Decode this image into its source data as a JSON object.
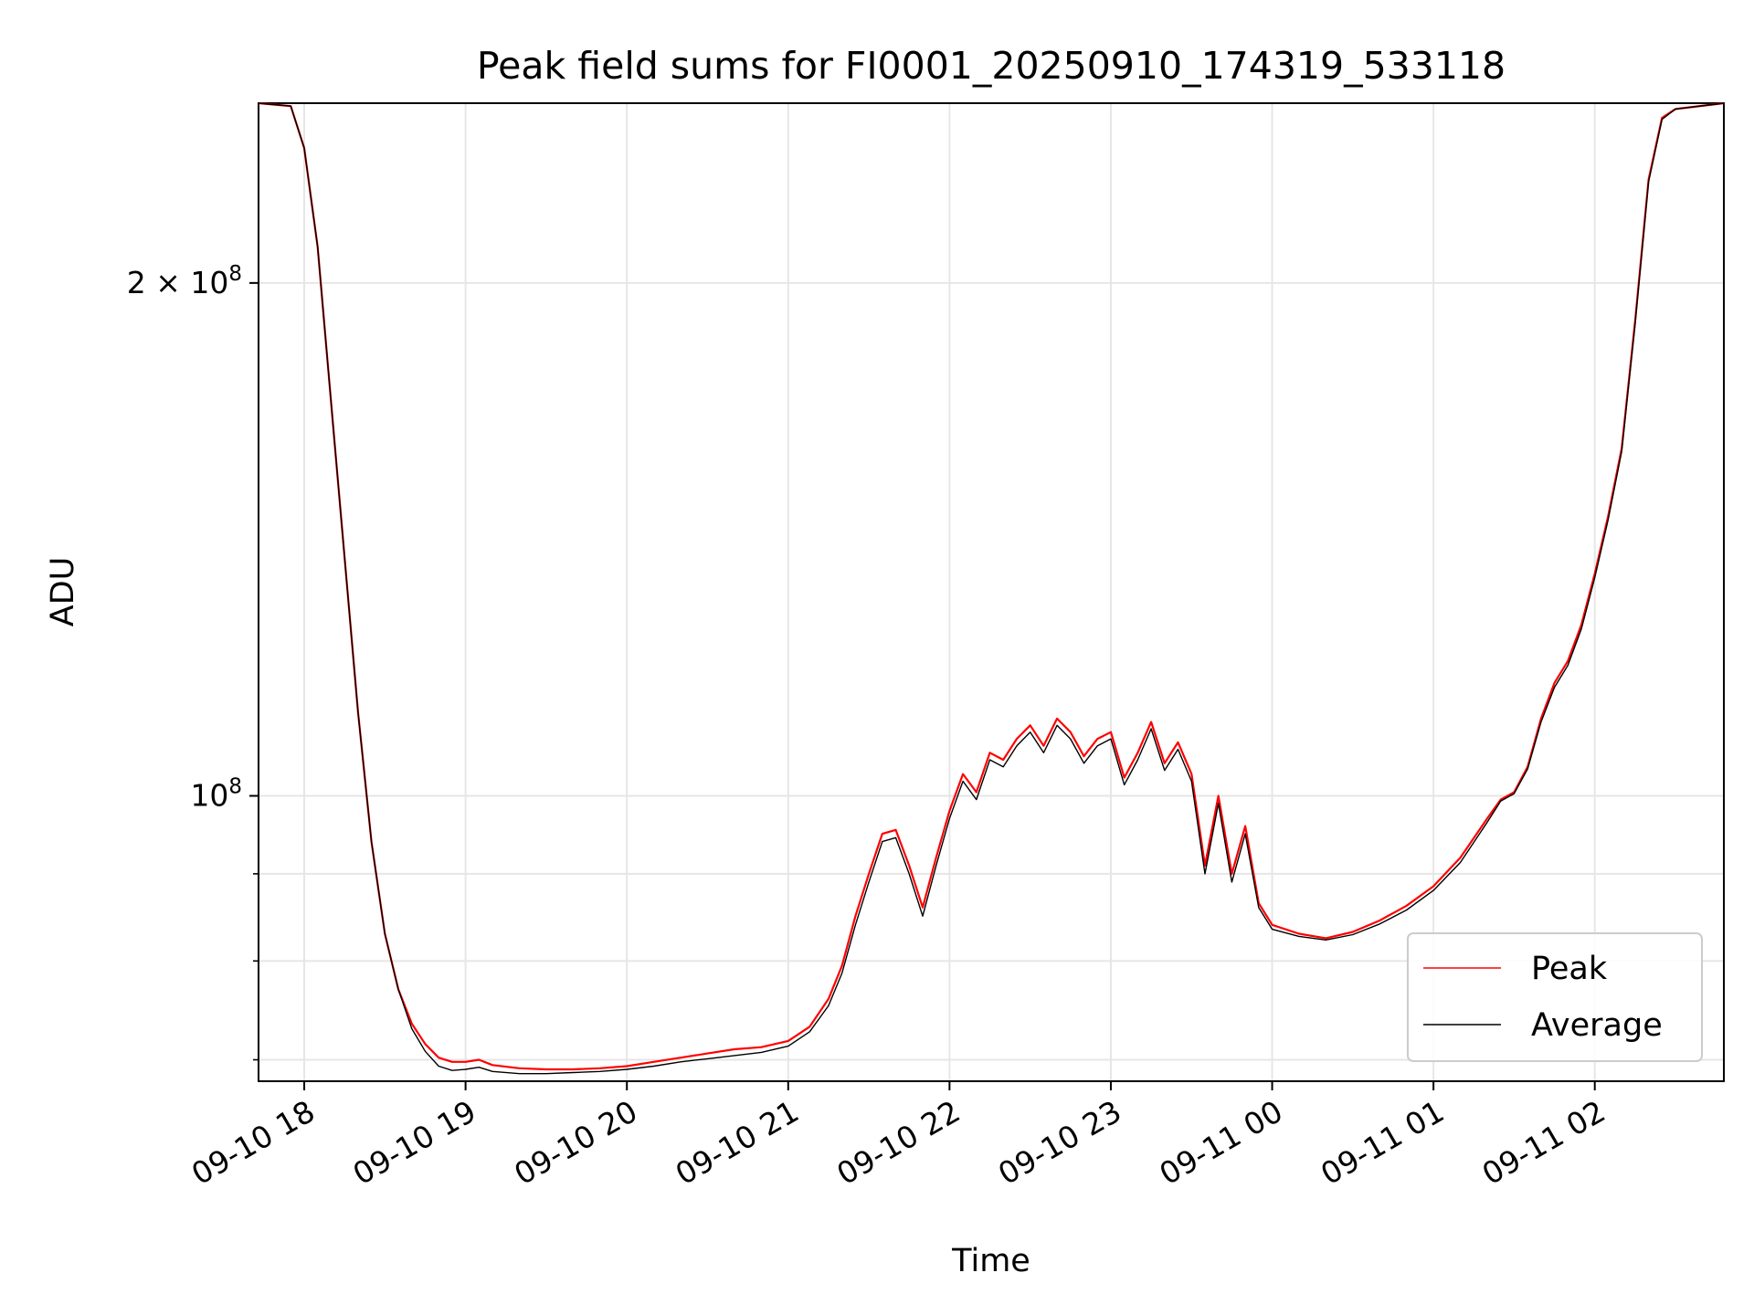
{
  "chart_data": {
    "type": "line",
    "title": "Peak field sums for FI0001_20250910_174319_533118",
    "xlabel": "Time",
    "ylabel": "ADU",
    "yscale": "log",
    "xlim": [
      "2025-09-10 17:43",
      "2025-09-11 02:48"
    ],
    "ylim": [
      68000000,
      255000000
    ],
    "grid": true,
    "legend_position": "lower right",
    "x_ticks": [
      "09-10 18",
      "09-10 19",
      "09-10 20",
      "09-10 21",
      "09-10 22",
      "09-10 23",
      "09-11 00",
      "09-11 01",
      "09-11 02"
    ],
    "y_ticks": [
      {
        "value": 100000000,
        "label": "10^8",
        "base": "10",
        "exp": "8"
      },
      {
        "value": 200000000,
        "label": "2×10^8",
        "base": "2 × 10",
        "exp": "8"
      }
    ],
    "x": [
      "2025-09-10 17:43",
      "2025-09-10 17:55",
      "2025-09-10 18:00",
      "2025-09-10 18:05",
      "2025-09-10 18:10",
      "2025-09-10 18:15",
      "2025-09-10 18:20",
      "2025-09-10 18:25",
      "2025-09-10 18:30",
      "2025-09-10 18:35",
      "2025-09-10 18:40",
      "2025-09-10 18:45",
      "2025-09-10 18:50",
      "2025-09-10 18:55",
      "2025-09-10 19:00",
      "2025-09-10 19:05",
      "2025-09-10 19:10",
      "2025-09-10 19:20",
      "2025-09-10 19:30",
      "2025-09-10 19:40",
      "2025-09-10 19:50",
      "2025-09-10 20:00",
      "2025-09-10 20:10",
      "2025-09-10 20:20",
      "2025-09-10 20:30",
      "2025-09-10 20:40",
      "2025-09-10 20:50",
      "2025-09-10 21:00",
      "2025-09-10 21:08",
      "2025-09-10 21:15",
      "2025-09-10 21:20",
      "2025-09-10 21:25",
      "2025-09-10 21:30",
      "2025-09-10 21:35",
      "2025-09-10 21:40",
      "2025-09-10 21:45",
      "2025-09-10 21:50",
      "2025-09-10 21:55",
      "2025-09-10 22:00",
      "2025-09-10 22:05",
      "2025-09-10 22:10",
      "2025-09-10 22:15",
      "2025-09-10 22:20",
      "2025-09-10 22:25",
      "2025-09-10 22:30",
      "2025-09-10 22:35",
      "2025-09-10 22:40",
      "2025-09-10 22:45",
      "2025-09-10 22:50",
      "2025-09-10 22:55",
      "2025-09-10 23:00",
      "2025-09-10 23:05",
      "2025-09-10 23:10",
      "2025-09-10 23:15",
      "2025-09-10 23:20",
      "2025-09-10 23:25",
      "2025-09-10 23:30",
      "2025-09-10 23:35",
      "2025-09-10 23:40",
      "2025-09-10 23:45",
      "2025-09-10 23:50",
      "2025-09-10 23:55",
      "2025-09-11 00:00",
      "2025-09-11 00:10",
      "2025-09-11 00:20",
      "2025-09-11 00:30",
      "2025-09-11 00:40",
      "2025-09-11 00:50",
      "2025-09-11 01:00",
      "2025-09-11 01:10",
      "2025-09-11 01:20",
      "2025-09-11 01:25",
      "2025-09-11 01:30",
      "2025-09-11 01:35",
      "2025-09-11 01:40",
      "2025-09-11 01:45",
      "2025-09-11 01:50",
      "2025-09-11 01:55",
      "2025-09-11 02:00",
      "2025-09-11 02:05",
      "2025-09-11 02:10",
      "2025-09-11 02:15",
      "2025-09-11 02:20",
      "2025-09-11 02:25",
      "2025-09-11 02:30",
      "2025-09-11 02:48"
    ],
    "series": [
      {
        "name": "Peak",
        "color": "#ff0000",
        "values": [
          255000000,
          254000000,
          240000000,
          210000000,
          170000000,
          138000000,
          112000000,
          94000000,
          83000000,
          77000000,
          73500000,
          71500000,
          70200000,
          69800000,
          69800000,
          70000000,
          69500000,
          69200000,
          69100000,
          69100000,
          69200000,
          69400000,
          69800000,
          70200000,
          70600000,
          71000000,
          71200000,
          71800000,
          73200000,
          76000000,
          79500000,
          85000000,
          90000000,
          95000000,
          95500000,
          91000000,
          86000000,
          92000000,
          98000000,
          103000000,
          100500000,
          106000000,
          105000000,
          108000000,
          110000000,
          107000000,
          111000000,
          109000000,
          105500000,
          108000000,
          109000000,
          102500000,
          106000000,
          110500000,
          104500000,
          107500000,
          103000000,
          91000000,
          100000000,
          90000000,
          96000000,
          86500000,
          84000000,
          83000000,
          82500000,
          83200000,
          84500000,
          86200000,
          88500000,
          92000000,
          97000000,
          99500000,
          100500000,
          104000000,
          111000000,
          116500000,
          120000000,
          126000000,
          135000000,
          146000000,
          160000000,
          190000000,
          230000000,
          250000000,
          253000000,
          255000000
        ]
      },
      {
        "name": "Average",
        "color": "#000000",
        "values": [
          255000000,
          254000000,
          240000000,
          210000000,
          170000000,
          138000000,
          112000000,
          94000000,
          83000000,
          77000000,
          73000000,
          70800000,
          69400000,
          69000000,
          69100000,
          69300000,
          68900000,
          68700000,
          68700000,
          68800000,
          68900000,
          69100000,
          69400000,
          69800000,
          70100000,
          70400000,
          70700000,
          71300000,
          72700000,
          75300000,
          78700000,
          84000000,
          89000000,
          94000000,
          94500000,
          90000000,
          85000000,
          91000000,
          97000000,
          102000000,
          99500000,
          105000000,
          104000000,
          107000000,
          109000000,
          106000000,
          110000000,
          108000000,
          104500000,
          107000000,
          108000000,
          101500000,
          105000000,
          109500000,
          103500000,
          106500000,
          102000000,
          90000000,
          99000000,
          89000000,
          95000000,
          86000000,
          83500000,
          82700000,
          82300000,
          82900000,
          84100000,
          85700000,
          88000000,
          91400000,
          96500000,
          99300000,
          100300000,
          103700000,
          110500000,
          115800000,
          119300000,
          125300000,
          134300000,
          145300000,
          159300000,
          189300000,
          229300000,
          249500000,
          253000000,
          255000000
        ]
      }
    ]
  }
}
